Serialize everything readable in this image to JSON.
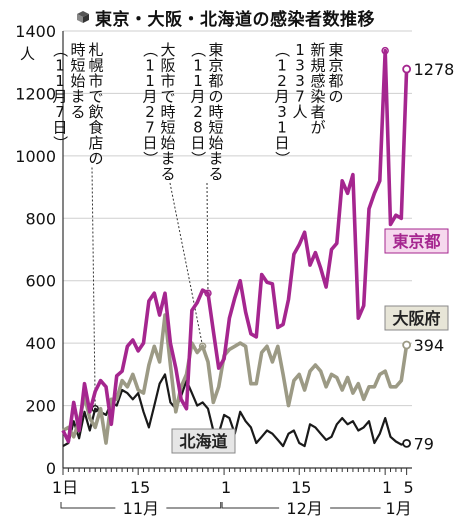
{
  "title": "東京・大阪・北海道の感染者数推移",
  "colors": {
    "tokyo": "#a5268f",
    "osaka": "#9c9a85",
    "hokkaido": "#1a1a1a",
    "tokyo_label_bg": "#f6d9ee",
    "osaka_label_bg": "#e7e5d7",
    "hokkaido_label_bg": "#e6e6e6"
  },
  "chart_data": {
    "type": "line",
    "ylabel": "人",
    "ylim": [
      0,
      1400
    ],
    "yticks": [
      0,
      200,
      400,
      600,
      800,
      1000,
      1200,
      1400
    ],
    "x_domain": [
      1,
      66
    ],
    "xticks": [
      {
        "x": 1,
        "label": "1日"
      },
      {
        "x": 15,
        "label": "15"
      },
      {
        "x": 31,
        "label": "1"
      },
      {
        "x": 45,
        "label": "15"
      },
      {
        "x": 61,
        "label": "1"
      },
      {
        "x": 65,
        "label": "5"
      }
    ],
    "months": [
      {
        "from": 1,
        "to": 30,
        "label": "11月"
      },
      {
        "from": 31,
        "to": 61,
        "label": "12月"
      },
      {
        "from": 61,
        "to": 66,
        "label": "1月"
      }
    ],
    "series": [
      {
        "name": "東京都",
        "key": "tokyo",
        "end_label": "1278",
        "values": [
          [
            1,
            120
          ],
          [
            2,
            85
          ],
          [
            3,
            210
          ],
          [
            4,
            120
          ],
          [
            5,
            270
          ],
          [
            6,
            180
          ],
          [
            7,
            245
          ],
          [
            8,
            280
          ],
          [
            9,
            260
          ],
          [
            10,
            140
          ],
          [
            11,
            295
          ],
          [
            12,
            310
          ],
          [
            13,
            390
          ],
          [
            14,
            410
          ],
          [
            15,
            375
          ],
          [
            16,
            400
          ],
          [
            17,
            535
          ],
          [
            18,
            560
          ],
          [
            19,
            490
          ],
          [
            20,
            560
          ],
          [
            21,
            400
          ],
          [
            22,
            320
          ],
          [
            23,
            220
          ],
          [
            24,
            190
          ],
          [
            25,
            505
          ],
          [
            26,
            530
          ],
          [
            27,
            570
          ],
          [
            28,
            560
          ],
          [
            29,
            440
          ],
          [
            30,
            320
          ],
          [
            31,
            350
          ],
          [
            32,
            480
          ],
          [
            33,
            545
          ],
          [
            34,
            600
          ],
          [
            35,
            500
          ],
          [
            36,
            430
          ],
          [
            37,
            420
          ],
          [
            38,
            620
          ],
          [
            39,
            595
          ],
          [
            40,
            590
          ],
          [
            41,
            450
          ],
          [
            42,
            460
          ],
          [
            43,
            540
          ],
          [
            44,
            685
          ],
          [
            45,
            715
          ],
          [
            46,
            755
          ],
          [
            47,
            650
          ],
          [
            48,
            690
          ],
          [
            49,
            640
          ],
          [
            50,
            580
          ],
          [
            51,
            700
          ],
          [
            52,
            720
          ],
          [
            53,
            920
          ],
          [
            54,
            880
          ],
          [
            55,
            940
          ],
          [
            56,
            480
          ],
          [
            57,
            520
          ],
          [
            58,
            830
          ],
          [
            59,
            880
          ],
          [
            60,
            920
          ],
          [
            61,
            1337
          ],
          [
            62,
            780
          ],
          [
            63,
            810
          ],
          [
            64,
            800
          ],
          [
            65,
            1278
          ]
        ]
      },
      {
        "name": "大阪府",
        "key": "osaka",
        "end_label": "394",
        "values": [
          [
            1,
            120
          ],
          [
            2,
            130
          ],
          [
            3,
            100
          ],
          [
            4,
            150
          ],
          [
            5,
            230
          ],
          [
            6,
            160
          ],
          [
            7,
            130
          ],
          [
            8,
            190
          ],
          [
            9,
            80
          ],
          [
            10,
            220
          ],
          [
            11,
            220
          ],
          [
            12,
            280
          ],
          [
            13,
            260
          ],
          [
            14,
            300
          ],
          [
            15,
            250
          ],
          [
            16,
            240
          ],
          [
            17,
            330
          ],
          [
            18,
            390
          ],
          [
            19,
            340
          ],
          [
            20,
            490
          ],
          [
            21,
            330
          ],
          [
            22,
            180
          ],
          [
            23,
            260
          ],
          [
            24,
            300
          ],
          [
            25,
            400
          ],
          [
            26,
            370
          ],
          [
            27,
            390
          ],
          [
            28,
            340
          ],
          [
            29,
            210
          ],
          [
            30,
            260
          ],
          [
            31,
            360
          ],
          [
            32,
            380
          ],
          [
            33,
            390
          ],
          [
            34,
            400
          ],
          [
            35,
            390
          ],
          [
            36,
            270
          ],
          [
            37,
            270
          ],
          [
            38,
            370
          ],
          [
            39,
            390
          ],
          [
            40,
            340
          ],
          [
            41,
            390
          ],
          [
            42,
            300
          ],
          [
            43,
            200
          ],
          [
            44,
            280
          ],
          [
            45,
            300
          ],
          [
            46,
            250
          ],
          [
            47,
            310
          ],
          [
            48,
            330
          ],
          [
            49,
            310
          ],
          [
            50,
            260
          ],
          [
            51,
            300
          ],
          [
            52,
            290
          ],
          [
            53,
            250
          ],
          [
            54,
            290
          ],
          [
            55,
            240
          ],
          [
            56,
            270
          ],
          [
            57,
            220
          ],
          [
            58,
            260
          ],
          [
            59,
            260
          ],
          [
            60,
            300
          ],
          [
            61,
            310
          ],
          [
            62,
            260
          ],
          [
            63,
            260
          ],
          [
            64,
            280
          ],
          [
            65,
            394
          ]
        ]
      },
      {
        "name": "北海道",
        "key": "hokkaido",
        "end_label": "79",
        "values": [
          [
            1,
            70
          ],
          [
            2,
            80
          ],
          [
            3,
            150
          ],
          [
            4,
            95
          ],
          [
            5,
            180
          ],
          [
            6,
            120
          ],
          [
            7,
            190
          ],
          [
            8,
            180
          ],
          [
            9,
            170
          ],
          [
            10,
            210
          ],
          [
            11,
            200
          ],
          [
            12,
            250
          ],
          [
            13,
            240
          ],
          [
            14,
            220
          ],
          [
            15,
            240
          ],
          [
            16,
            180
          ],
          [
            17,
            130
          ],
          [
            18,
            200
          ],
          [
            19,
            270
          ],
          [
            20,
            300
          ],
          [
            21,
            210
          ],
          [
            22,
            190
          ],
          [
            23,
            230
          ],
          [
            24,
            280
          ],
          [
            25,
            240
          ],
          [
            26,
            200
          ],
          [
            27,
            210
          ],
          [
            28,
            190
          ],
          [
            29,
            120
          ],
          [
            30,
            110
          ],
          [
            31,
            170
          ],
          [
            32,
            160
          ],
          [
            33,
            110
          ],
          [
            34,
            180
          ],
          [
            35,
            150
          ],
          [
            36,
            130
          ],
          [
            37,
            80
          ],
          [
            38,
            100
          ],
          [
            39,
            120
          ],
          [
            40,
            110
          ],
          [
            41,
            90
          ],
          [
            42,
            70
          ],
          [
            43,
            110
          ],
          [
            44,
            120
          ],
          [
            45,
            80
          ],
          [
            46,
            70
          ],
          [
            47,
            140
          ],
          [
            48,
            130
          ],
          [
            49,
            110
          ],
          [
            50,
            90
          ],
          [
            51,
            100
          ],
          [
            52,
            140
          ],
          [
            53,
            160
          ],
          [
            54,
            140
          ],
          [
            55,
            150
          ],
          [
            56,
            120
          ],
          [
            57,
            130
          ],
          [
            58,
            150
          ],
          [
            59,
            80
          ],
          [
            60,
            110
          ],
          [
            61,
            160
          ],
          [
            62,
            100
          ],
          [
            63,
            85
          ],
          [
            64,
            75
          ],
          [
            65,
            79
          ]
        ]
      }
    ],
    "annotations": [
      {
        "lines": [
          "札幌市で飲食店の",
          "時短始まる",
          "（11月7日）"
        ],
        "x": 7,
        "y": 190,
        "series": "hokkaido"
      },
      {
        "lines": [
          "大阪市で時短始まる",
          "（11月27日）"
        ],
        "x": 27,
        "y": 390,
        "series": "osaka"
      },
      {
        "lines": [
          "東京都の時短始まる",
          "（11月28日）"
        ],
        "x": 28,
        "y": 560,
        "series": "tokyo"
      },
      {
        "lines": [
          "東京都の",
          "新規感染者が",
          "1337人",
          "（12月31日）"
        ],
        "x": 61,
        "y": 1337,
        "series": "tokyo"
      }
    ]
  }
}
